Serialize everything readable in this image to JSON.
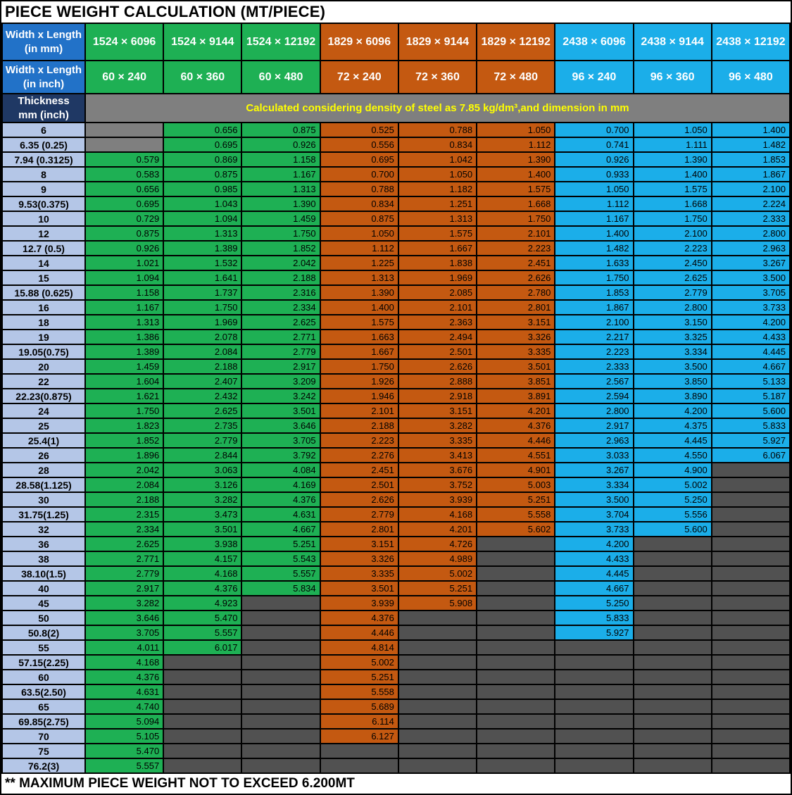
{
  "title": "PIECE WEIGHT CALCULATION (MT/PIECE)",
  "header": {
    "mm_label": "Width x Length\n(in mm)",
    "inch_label": "Width x Length\n(in inch)",
    "thickness_label": "Thickness\nmm (inch)",
    "note": "Calculated considering density of steel as 7.85 kg/dm³,and dimension in mm",
    "mm_sizes": [
      "1524 × 6096",
      "1524 × 9144",
      "1524 × 12192",
      "1829 × 6096",
      "1829 × 9144",
      "1829 × 12192",
      "2438 × 6096",
      "2438 × 9144",
      "2438 × 12192"
    ],
    "inch_sizes": [
      "60 × 240",
      "60 × 360",
      "60 × 480",
      "72 × 240",
      "72 × 360",
      "72 × 480",
      "96 × 240",
      "96 × 360",
      "96 × 480"
    ],
    "column_groups": [
      "green",
      "green",
      "green",
      "orange",
      "orange",
      "orange",
      "cyan",
      "cyan",
      "cyan"
    ]
  },
  "rows": [
    {
      "thickness": "6",
      "values": [
        null,
        "0.656",
        "0.875",
        "0.525",
        "0.788",
        "1.050",
        "0.700",
        "1.050",
        "1.400"
      ]
    },
    {
      "thickness": "6.35 (0.25)",
      "values": [
        null,
        "0.695",
        "0.926",
        "0.556",
        "0.834",
        "1.112",
        "0.741",
        "1.111",
        "1.482"
      ]
    },
    {
      "thickness": "7.94 (0.3125)",
      "values": [
        "0.579",
        "0.869",
        "1.158",
        "0.695",
        "1.042",
        "1.390",
        "0.926",
        "1.390",
        "1.853"
      ]
    },
    {
      "thickness": "8",
      "values": [
        "0.583",
        "0.875",
        "1.167",
        "0.700",
        "1.050",
        "1.400",
        "0.933",
        "1.400",
        "1.867"
      ]
    },
    {
      "thickness": "9",
      "values": [
        "0.656",
        "0.985",
        "1.313",
        "0.788",
        "1.182",
        "1.575",
        "1.050",
        "1.575",
        "2.100"
      ]
    },
    {
      "thickness": "9.53(0.375)",
      "values": [
        "0.695",
        "1.043",
        "1.390",
        "0.834",
        "1.251",
        "1.668",
        "1.112",
        "1.668",
        "2.224"
      ]
    },
    {
      "thickness": "10",
      "values": [
        "0.729",
        "1.094",
        "1.459",
        "0.875",
        "1.313",
        "1.750",
        "1.167",
        "1.750",
        "2.333"
      ]
    },
    {
      "thickness": "12",
      "values": [
        "0.875",
        "1.313",
        "1.750",
        "1.050",
        "1.575",
        "2.101",
        "1.400",
        "2.100",
        "2.800"
      ]
    },
    {
      "thickness": "12.7 (0.5)",
      "values": [
        "0.926",
        "1.389",
        "1.852",
        "1.112",
        "1.667",
        "2.223",
        "1.482",
        "2.223",
        "2.963"
      ]
    },
    {
      "thickness": "14",
      "values": [
        "1.021",
        "1.532",
        "2.042",
        "1.225",
        "1.838",
        "2.451",
        "1.633",
        "2.450",
        "3.267"
      ]
    },
    {
      "thickness": "15",
      "values": [
        "1.094",
        "1.641",
        "2.188",
        "1.313",
        "1.969",
        "2.626",
        "1.750",
        "2.625",
        "3.500"
      ]
    },
    {
      "thickness": "15.88 (0.625)",
      "values": [
        "1.158",
        "1.737",
        "2.316",
        "1.390",
        "2.085",
        "2.780",
        "1.853",
        "2.779",
        "3.705"
      ]
    },
    {
      "thickness": "16",
      "values": [
        "1.167",
        "1.750",
        "2.334",
        "1.400",
        "2.101",
        "2.801",
        "1.867",
        "2.800",
        "3.733"
      ]
    },
    {
      "thickness": "18",
      "values": [
        "1.313",
        "1.969",
        "2.625",
        "1.575",
        "2.363",
        "3.151",
        "2.100",
        "3.150",
        "4.200"
      ]
    },
    {
      "thickness": "19",
      "values": [
        "1.386",
        "2.078",
        "2.771",
        "1.663",
        "2.494",
        "3.326",
        "2.217",
        "3.325",
        "4.433"
      ]
    },
    {
      "thickness": "19.05(0.75)",
      "values": [
        "1.389",
        "2.084",
        "2.779",
        "1.667",
        "2.501",
        "3.335",
        "2.223",
        "3.334",
        "4.445"
      ]
    },
    {
      "thickness": "20",
      "values": [
        "1.459",
        "2.188",
        "2.917",
        "1.750",
        "2.626",
        "3.501",
        "2.333",
        "3.500",
        "4.667"
      ]
    },
    {
      "thickness": "22",
      "values": [
        "1.604",
        "2.407",
        "3.209",
        "1.926",
        "2.888",
        "3.851",
        "2.567",
        "3.850",
        "5.133"
      ]
    },
    {
      "thickness": "22.23(0.875)",
      "values": [
        "1.621",
        "2.432",
        "3.242",
        "1.946",
        "2.918",
        "3.891",
        "2.594",
        "3.890",
        "5.187"
      ]
    },
    {
      "thickness": "24",
      "values": [
        "1.750",
        "2.625",
        "3.501",
        "2.101",
        "3.151",
        "4.201",
        "2.800",
        "4.200",
        "5.600"
      ]
    },
    {
      "thickness": "25",
      "values": [
        "1.823",
        "2.735",
        "3.646",
        "2.188",
        "3.282",
        "4.376",
        "2.917",
        "4.375",
        "5.833"
      ]
    },
    {
      "thickness": "25.4(1)",
      "values": [
        "1.852",
        "2.779",
        "3.705",
        "2.223",
        "3.335",
        "4.446",
        "2.963",
        "4.445",
        "5.927"
      ]
    },
    {
      "thickness": "26",
      "values": [
        "1.896",
        "2.844",
        "3.792",
        "2.276",
        "3.413",
        "4.551",
        "3.033",
        "4.550",
        "6.067"
      ]
    },
    {
      "thickness": "28",
      "values": [
        "2.042",
        "3.063",
        "4.084",
        "2.451",
        "3.676",
        "4.901",
        "3.267",
        "4.900",
        null
      ]
    },
    {
      "thickness": "28.58(1.125)",
      "values": [
        "2.084",
        "3.126",
        "4.169",
        "2.501",
        "3.752",
        "5.003",
        "3.334",
        "5.002",
        null
      ]
    },
    {
      "thickness": "30",
      "values": [
        "2.188",
        "3.282",
        "4.376",
        "2.626",
        "3.939",
        "5.251",
        "3.500",
        "5.250",
        null
      ]
    },
    {
      "thickness": "31.75(1.25)",
      "values": [
        "2.315",
        "3.473",
        "4.631",
        "2.779",
        "4.168",
        "5.558",
        "3.704",
        "5.556",
        null
      ]
    },
    {
      "thickness": "32",
      "values": [
        "2.334",
        "3.501",
        "4.667",
        "2.801",
        "4.201",
        "5.602",
        "3.733",
        "5.600",
        null
      ]
    },
    {
      "thickness": "36",
      "values": [
        "2.625",
        "3.938",
        "5.251",
        "3.151",
        "4.726",
        null,
        "4.200",
        null,
        null
      ]
    },
    {
      "thickness": "38",
      "values": [
        "2.771",
        "4.157",
        "5.543",
        "3.326",
        "4.989",
        null,
        "4.433",
        null,
        null
      ]
    },
    {
      "thickness": "38.10(1.5)",
      "values": [
        "2.779",
        "4.168",
        "5.557",
        "3.335",
        "5.002",
        null,
        "4.445",
        null,
        null
      ]
    },
    {
      "thickness": "40",
      "values": [
        "2.917",
        "4.376",
        "5.834",
        "3.501",
        "5.251",
        null,
        "4.667",
        null,
        null
      ]
    },
    {
      "thickness": "45",
      "values": [
        "3.282",
        "4.923",
        null,
        "3.939",
        "5.908",
        null,
        "5.250",
        null,
        null
      ]
    },
    {
      "thickness": "50",
      "values": [
        "3.646",
        "5.470",
        null,
        "4.376",
        null,
        null,
        "5.833",
        null,
        null
      ]
    },
    {
      "thickness": "50.8(2)",
      "values": [
        "3.705",
        "5.557",
        null,
        "4.446",
        null,
        null,
        "5.927",
        null,
        null
      ]
    },
    {
      "thickness": "55",
      "values": [
        "4.011",
        "6.017",
        null,
        "4.814",
        null,
        null,
        null,
        null,
        null
      ]
    },
    {
      "thickness": "57.15(2.25)",
      "values": [
        "4.168",
        null,
        null,
        "5.002",
        null,
        null,
        null,
        null,
        null
      ]
    },
    {
      "thickness": "60",
      "values": [
        "4.376",
        null,
        null,
        "5.251",
        null,
        null,
        null,
        null,
        null
      ]
    },
    {
      "thickness": "63.5(2.50)",
      "values": [
        "4.631",
        null,
        null,
        "5.558",
        null,
        null,
        null,
        null,
        null
      ]
    },
    {
      "thickness": "65",
      "values": [
        "4.740",
        null,
        null,
        "5.689",
        null,
        null,
        null,
        null,
        null
      ]
    },
    {
      "thickness": "69.85(2.75)",
      "values": [
        "5.094",
        null,
        null,
        "6.114",
        null,
        null,
        null,
        null,
        null
      ]
    },
    {
      "thickness": "70",
      "values": [
        "5.105",
        null,
        null,
        "6.127",
        null,
        null,
        null,
        null,
        null
      ]
    },
    {
      "thickness": "75",
      "values": [
        "5.470",
        null,
        null,
        null,
        null,
        null,
        null,
        null,
        null
      ]
    },
    {
      "thickness": "76.2(3)",
      "values": [
        "5.557",
        null,
        null,
        null,
        null,
        null,
        null,
        null,
        null
      ]
    }
  ],
  "footer": "** MAXIMUM PIECE WEIGHT NOT TO EXCEED 6.200MT",
  "colors": {
    "header_blue": "#2272C8",
    "thickness_header_navy": "#1F3864",
    "group_green": "#1EB054",
    "group_orange": "#C45911",
    "group_cyan": "#1BAEE9",
    "thickness_column_fill": "#B4C6E7",
    "note_gray": "#7F7F7F",
    "empty_cell_gray_light": "#7F7F7F",
    "empty_cell_gray_dark": "#515151",
    "note_text_yellow": "#FFFF00"
  }
}
